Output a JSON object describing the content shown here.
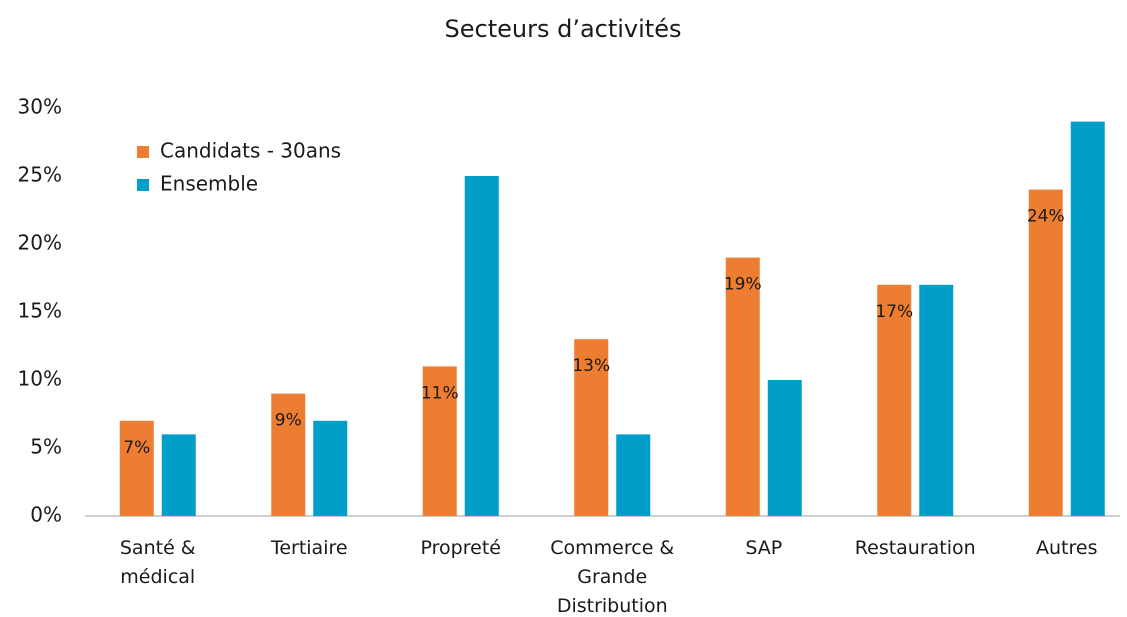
{
  "chart_data": {
    "type": "bar",
    "title": "Secteurs d’activités",
    "categories": [
      "Santé &\nmédical",
      "Tertiaire",
      "Propreté",
      "Commerce &\nGrande\nDistribution",
      "SAP",
      "Restauration",
      "Autres"
    ],
    "series": [
      {
        "name": "Candidats - 30ans",
        "color": "#ed7d31",
        "values": [
          7,
          9,
          11,
          13,
          19,
          17,
          24
        ],
        "value_labels": [
          "7%",
          "9%",
          "11%",
          "13%",
          "19%",
          "17%",
          "24%"
        ]
      },
      {
        "name": "Ensemble",
        "color": "#009ec9",
        "values": [
          6,
          7,
          25,
          6,
          10,
          17,
          29
        ]
      }
    ],
    "ylim": [
      0,
      30
    ],
    "yticks": [
      {
        "value": 0,
        "label": "0%"
      },
      {
        "value": 5,
        "label": "5%"
      },
      {
        "value": 10,
        "label": "10%"
      },
      {
        "value": 15,
        "label": "15%"
      },
      {
        "value": 20,
        "label": "20%"
      },
      {
        "value": 25,
        "label": "25%"
      },
      {
        "value": 30,
        "label": "30%"
      }
    ],
    "legend": "top-left"
  }
}
